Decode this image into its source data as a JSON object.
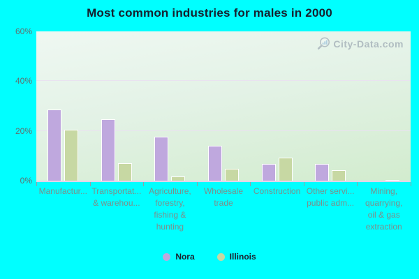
{
  "title": "Most common industries for males in 2000",
  "watermark": {
    "text": "City-Data.com"
  },
  "colors": {
    "page_background": "#00ffff",
    "title_text": "#16202e",
    "nora": "#bfa8de",
    "illinois": "#c7d8a3",
    "bar_border": "#ffffff",
    "plot_gradient_top": "#eff8f2",
    "plot_gradient_bottom": "#d2ecce",
    "gridline": "#e9e2f0",
    "axis_line": "#ddd6ec",
    "tick": "#8fa0a8",
    "x_label_text": "#7b908c",
    "y_label_text": "#5f7070",
    "legend_text": "#1a222e",
    "watermark_text": "#9fabb4"
  },
  "y_axis": {
    "tick_labels": [
      "0%",
      "20%",
      "40%",
      "60%"
    ],
    "tick_values": [
      0,
      20,
      40,
      60
    ],
    "max": 60
  },
  "legend": {
    "items": [
      {
        "label": "Nora",
        "color": "#bfa8de"
      },
      {
        "label": "Illinois",
        "color": "#c7d8a3"
      }
    ]
  },
  "chart_data": {
    "type": "bar",
    "title": "Most common industries for males in 2000",
    "categories": [
      "Manufactur...",
      "Transportat...\n& warehou...",
      "Agriculture,\nforestry,\nfishing &\nhunting",
      "Wholesale\ntrade",
      "Construction",
      "Other servi...\npublic adm...",
      "Mining,\nquarrying,\noil & gas\nextraction"
    ],
    "series": [
      {
        "name": "Nora",
        "values": [
          28.6,
          24.6,
          17.6,
          14.0,
          6.8,
          6.8,
          0
        ]
      },
      {
        "name": "Illinois",
        "values": [
          20.6,
          7.0,
          1.7,
          4.7,
          9.3,
          4.2,
          0.4
        ]
      }
    ],
    "xlabel": "",
    "ylabel": "",
    "ylim": [
      0,
      60
    ],
    "grid": "horizontal",
    "legend_position": "bottom-center"
  }
}
